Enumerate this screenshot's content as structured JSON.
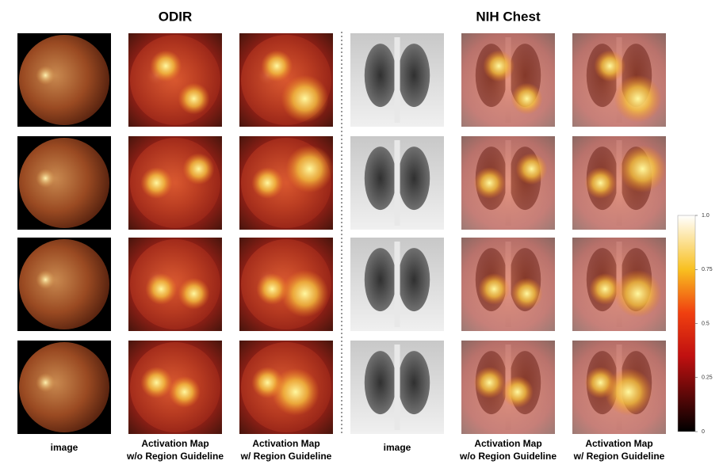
{
  "sections": [
    {
      "title": "ODIR",
      "kind": "fundus",
      "columns": [
        {
          "lines": [
            "image"
          ]
        },
        {
          "lines": [
            "Activation Map",
            "w/o Region Guideline"
          ]
        },
        {
          "lines": [
            "Activation Map",
            "w/ Region Guideline"
          ]
        }
      ]
    },
    {
      "title": "NIH Chest",
      "kind": "xray",
      "columns": [
        {
          "lines": [
            "image"
          ]
        },
        {
          "lines": [
            "Activation Map",
            "w/o Region Guideline"
          ]
        },
        {
          "lines": [
            "Activation Map",
            "w/ Region Guideline"
          ]
        }
      ]
    }
  ],
  "colorbar": {
    "ticks": [
      0,
      0.25,
      0.5,
      0.75,
      {
        "value": 1,
        "label": "1.0"
      }
    ]
  }
}
